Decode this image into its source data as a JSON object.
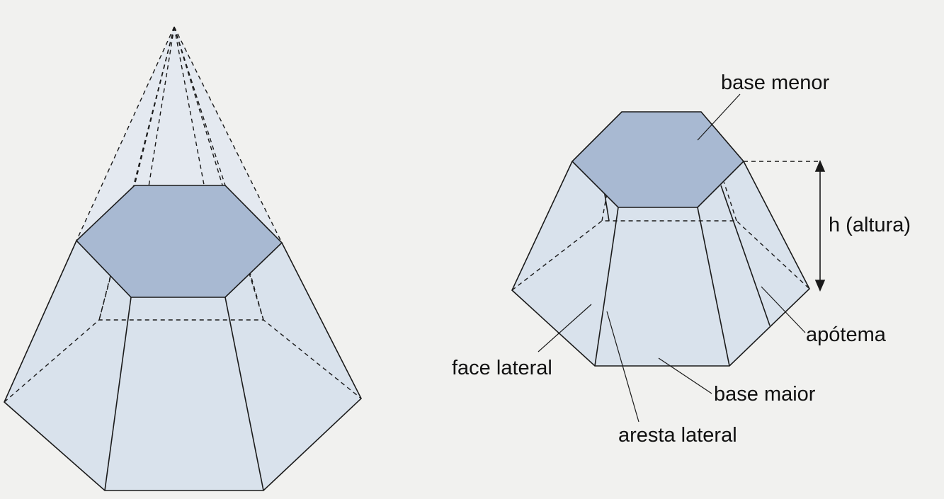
{
  "labels": {
    "base_menor": "base menor",
    "h_altura": "h (altura)",
    "apotema": "apótema",
    "face_lateral": "face lateral",
    "base_maior": "base maior",
    "aresta_lateral": "aresta lateral"
  },
  "colors": {
    "background": "#f1f1ef",
    "face_fill": "#d9e2ec",
    "top_fill": "#a8b9d2",
    "stroke": "#1a1a1a"
  }
}
